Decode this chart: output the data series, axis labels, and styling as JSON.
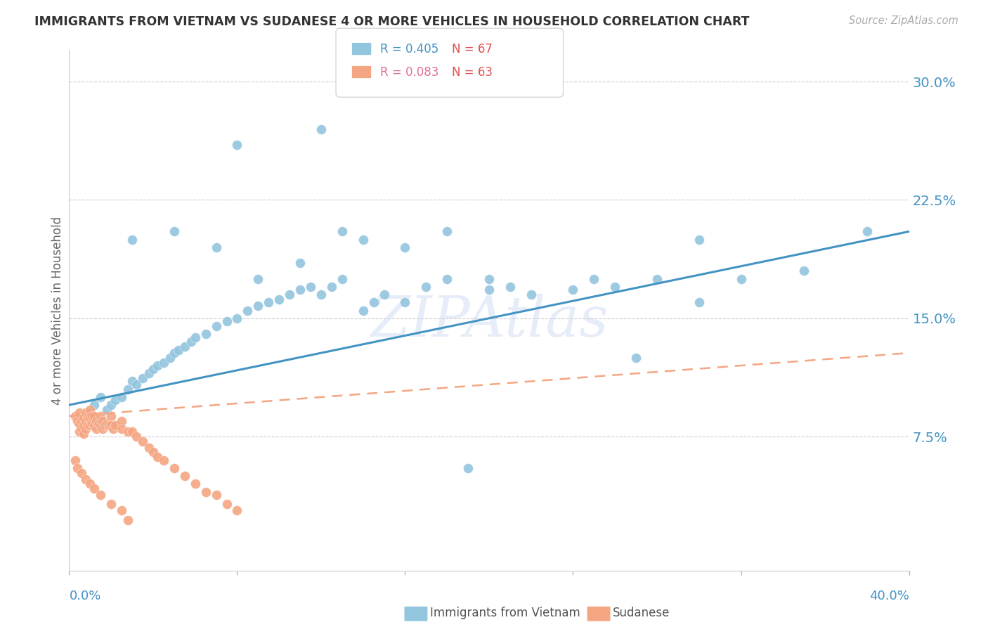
{
  "title": "IMMIGRANTS FROM VIETNAM VS SUDANESE 4 OR MORE VEHICLES IN HOUSEHOLD CORRELATION CHART",
  "source": "Source: ZipAtlas.com",
  "ylabel": "4 or more Vehicles in Household",
  "color_vietnam": "#92c5de",
  "color_sudanese": "#f4a582",
  "color_vietnam_line": "#4393c3",
  "color_sudanese_line": "#f4a582",
  "background_color": "#ffffff",
  "watermark": "ZIPAtlas",
  "xlim": [
    0.0,
    0.4
  ],
  "ylim": [
    -0.01,
    0.32
  ],
  "yticks": [
    0.075,
    0.15,
    0.225,
    0.3
  ],
  "ytick_labels": [
    "7.5%",
    "15.0%",
    "22.5%",
    "30.0%"
  ],
  "xtick_positions": [
    0.0,
    0.08,
    0.16,
    0.24,
    0.32,
    0.4
  ],
  "vietnam_x": [
    0.01,
    0.012,
    0.015,
    0.018,
    0.02,
    0.022,
    0.025,
    0.028,
    0.03,
    0.032,
    0.035,
    0.038,
    0.04,
    0.042,
    0.045,
    0.048,
    0.05,
    0.052,
    0.055,
    0.058,
    0.06,
    0.065,
    0.07,
    0.075,
    0.08,
    0.085,
    0.09,
    0.095,
    0.1,
    0.105,
    0.11,
    0.115,
    0.12,
    0.125,
    0.13,
    0.14,
    0.145,
    0.15,
    0.16,
    0.17,
    0.18,
    0.2,
    0.22,
    0.24,
    0.26,
    0.28,
    0.3,
    0.32,
    0.35,
    0.38,
    0.03,
    0.05,
    0.07,
    0.09,
    0.11,
    0.13,
    0.2,
    0.25,
    0.3,
    0.18,
    0.21,
    0.16,
    0.14,
    0.12,
    0.08,
    0.19,
    0.27
  ],
  "vietnam_y": [
    0.09,
    0.095,
    0.1,
    0.092,
    0.095,
    0.098,
    0.1,
    0.105,
    0.11,
    0.108,
    0.112,
    0.115,
    0.118,
    0.12,
    0.122,
    0.125,
    0.128,
    0.13,
    0.132,
    0.135,
    0.138,
    0.14,
    0.145,
    0.148,
    0.15,
    0.155,
    0.158,
    0.16,
    0.162,
    0.165,
    0.168,
    0.17,
    0.165,
    0.17,
    0.175,
    0.155,
    0.16,
    0.165,
    0.16,
    0.17,
    0.175,
    0.168,
    0.165,
    0.168,
    0.17,
    0.175,
    0.16,
    0.175,
    0.18,
    0.205,
    0.2,
    0.205,
    0.195,
    0.175,
    0.185,
    0.205,
    0.175,
    0.175,
    0.2,
    0.205,
    0.17,
    0.195,
    0.2,
    0.27,
    0.26,
    0.055,
    0.125
  ],
  "sudanese_x": [
    0.003,
    0.004,
    0.005,
    0.005,
    0.005,
    0.006,
    0.006,
    0.007,
    0.007,
    0.007,
    0.008,
    0.008,
    0.008,
    0.009,
    0.009,
    0.01,
    0.01,
    0.01,
    0.011,
    0.011,
    0.012,
    0.012,
    0.013,
    0.013,
    0.014,
    0.015,
    0.015,
    0.016,
    0.016,
    0.017,
    0.018,
    0.019,
    0.02,
    0.02,
    0.021,
    0.022,
    0.025,
    0.025,
    0.028,
    0.03,
    0.032,
    0.035,
    0.038,
    0.04,
    0.042,
    0.045,
    0.05,
    0.055,
    0.06,
    0.065,
    0.07,
    0.075,
    0.08,
    0.003,
    0.004,
    0.006,
    0.008,
    0.01,
    0.012,
    0.015,
    0.02,
    0.025,
    0.028
  ],
  "sudanese_y": [
    0.088,
    0.085,
    0.09,
    0.083,
    0.078,
    0.085,
    0.08,
    0.087,
    0.082,
    0.077,
    0.09,
    0.085,
    0.08,
    0.087,
    0.082,
    0.092,
    0.087,
    0.082,
    0.088,
    0.083,
    0.088,
    0.082,
    0.085,
    0.08,
    0.083,
    0.088,
    0.082,
    0.085,
    0.08,
    0.082,
    0.083,
    0.082,
    0.088,
    0.082,
    0.08,
    0.082,
    0.085,
    0.08,
    0.078,
    0.078,
    0.075,
    0.072,
    0.068,
    0.065,
    0.062,
    0.06,
    0.055,
    0.05,
    0.045,
    0.04,
    0.038,
    0.032,
    0.028,
    0.06,
    0.055,
    0.052,
    0.048,
    0.045,
    0.042,
    0.038,
    0.032,
    0.028,
    0.022
  ],
  "vietnam_line_x": [
    0.0,
    0.4
  ],
  "vietnam_line_y": [
    0.095,
    0.205
  ],
  "sudanese_line_x": [
    0.0,
    0.4
  ],
  "sudanese_line_y": [
    0.088,
    0.128
  ],
  "legend_r_vietnam": "R = 0.405",
  "legend_n_vietnam": "N = 67",
  "legend_r_sudanese": "R = 0.083",
  "legend_n_sudanese": "N = 63",
  "color_r_vietnam": "#4393c3",
  "color_n_vietnam": "#e05050",
  "color_r_sudanese": "#e05050",
  "color_n_sudanese": "#e05050"
}
